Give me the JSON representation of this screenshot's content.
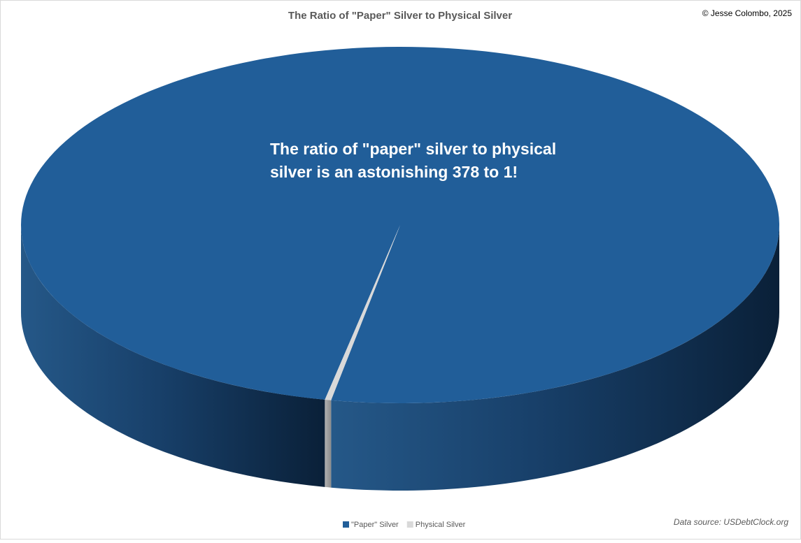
{
  "chart_data": {
    "type": "pie3d",
    "title": "The Ratio of \"Paper\" Silver to Physical Silver",
    "credit": "© Jesse Colombo, 2025",
    "source": "Data source: USDebtClock.org",
    "annotation": [
      "The ratio of \"paper\" silver to physical",
      "silver is an astonishing 378 to 1!"
    ],
    "categories": [
      "\"Paper\" Silver",
      "Physical Silver"
    ],
    "values": [
      378,
      1
    ],
    "colors": [
      "#215e99",
      "#d9d9d9"
    ],
    "legend": "bottom"
  }
}
